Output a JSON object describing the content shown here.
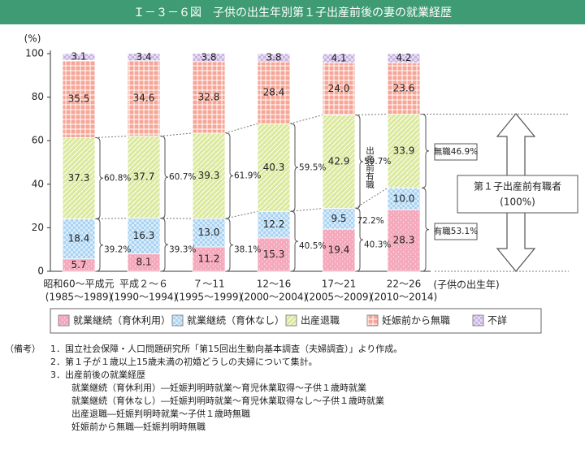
{
  "title": "Ｉ－３－６図　子供の出生年別第１子出産前後の妻の就業経歴",
  "chart_data": {
    "type": "stacked_bar",
    "y_label": "(%)",
    "x_label": "(子供の出生年)",
    "categories": [
      "昭和60～平成元",
      "平成２～６",
      "７～11",
      "12～16",
      "17～21",
      "22～26"
    ],
    "category_years": [
      "(1985～1989)",
      "(1990～1994)",
      "(1995～1999)",
      "(2000～2004)",
      "(2005～2009)",
      "(2010～2014)"
    ],
    "ylim": [
      0,
      100
    ],
    "yticks": [
      0,
      20,
      40,
      60,
      80,
      100
    ],
    "series": [
      {
        "name": "就業継続（育休利用）",
        "color": "#f5a9bc",
        "values": [
          5.7,
          8.1,
          11.2,
          15.3,
          19.4,
          28.3
        ],
        "value_labels": [
          "5.7",
          "8.1",
          "11.2",
          "15.3",
          "19.4",
          "28.3"
        ]
      },
      {
        "name": "就業継続（育休なし）",
        "color": "#a9d3f2",
        "values": [
          18.4,
          16.3,
          13.0,
          12.2,
          9.5,
          10.0
        ],
        "value_labels": [
          "18.4",
          "16.3",
          "13.0",
          "12.2",
          "9.5",
          "10.0"
        ]
      },
      {
        "name": "出産退職",
        "color": "#dbe99d",
        "values": [
          37.3,
          37.7,
          39.3,
          40.3,
          42.9,
          33.9
        ],
        "value_labels": [
          "37.3",
          "37.7",
          "39.3",
          "40.3",
          "42.9",
          "33.9"
        ]
      },
      {
        "name": "妊娠前から無職",
        "color": "#f6a697",
        "values": [
          35.5,
          34.6,
          32.8,
          28.4,
          24.0,
          23.6
        ],
        "value_labels": [
          "35.5",
          "34.6",
          "32.8",
          "28.4",
          "24.0",
          "23.6"
        ]
      },
      {
        "name": "不詳",
        "color": "#c9b3e3",
        "values": [
          3.1,
          3.4,
          3.8,
          3.8,
          4.1,
          4.2
        ],
        "value_labels": [
          "3.1",
          "3.4",
          "3.8",
          "3.8",
          "4.1",
          "4.2"
        ]
      }
    ],
    "quit_rate_labels": [
      "60.8%",
      "60.7%",
      "61.9%",
      "59.5%",
      "59.7%"
    ],
    "continue_rate_labels": [
      "39.2%",
      "39.3%",
      "38.1%",
      "40.5%",
      "40.3%"
    ],
    "prenatal_employed_label": "出産前有職",
    "prenatal_employed_rate": "72.2%",
    "not_employed_after": "無職46.9%",
    "employed_after": "有職53.1%",
    "box_label": "第１子出産前有職者",
    "box_sub": "(100%)"
  },
  "notes": {
    "heading": "（備考）",
    "items": [
      "1．国立社会保障・人口問題研究所「第15回出生動向基本調査（夫婦調査）」より作成。",
      "2．第１子が１歳以上15歳未満の初婚どうしの夫婦について集計。",
      "3．出産前後の就業経歴"
    ],
    "definitions": [
      "就業継続（育休利用）―妊娠判明時就業～育児休業取得～子供１歳時就業",
      "就業継続（育休なし）―妊娠判明時就業～育児休業取得なし～子供１歳時就業",
      "出産退職―妊娠判明時就業～子供１歳時無職",
      "妊娠前から無職―妊娠判明時無職"
    ]
  }
}
